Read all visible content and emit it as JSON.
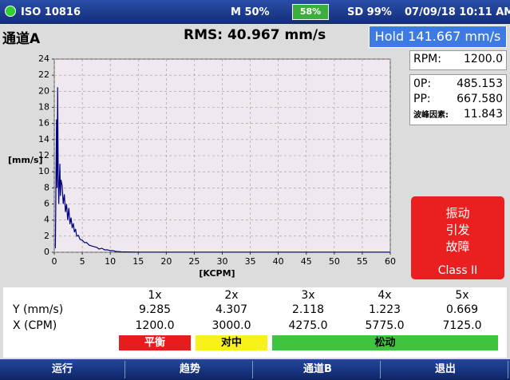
{
  "status_bar": {
    "device": "ISO 10816",
    "memory": "M 50%",
    "battery": "58%",
    "sd": "SD 99%",
    "datetime": "07/09/18 10:11 AM"
  },
  "header": {
    "channel": "通道A",
    "rms": "RMS: 40.967 mm/s",
    "hold": "Hold 141.667 mm/s"
  },
  "chart_data": {
    "type": "line",
    "x_label": "[KCPM]",
    "y_label": "[mm/s]",
    "x": [
      0.2,
      0.4,
      0.5,
      0.6,
      0.7,
      0.8,
      1.0,
      1.1,
      1.2,
      1.4,
      1.6,
      1.8,
      2.0,
      2.2,
      2.4,
      2.6,
      2.8,
      3.0,
      3.2,
      3.4,
      3.6,
      3.8,
      4.0,
      4.3,
      4.6,
      5.0,
      5.4,
      5.8,
      6.2,
      6.6,
      7.1,
      7.6,
      8.0,
      8.5,
      9.0,
      9.5,
      10,
      10.5,
      11,
      12,
      15,
      20,
      30,
      40,
      50,
      60
    ],
    "values": [
      0.5,
      16.5,
      8,
      20.5,
      10,
      6,
      11,
      7,
      9,
      8.3,
      6,
      7.2,
      5,
      6,
      4,
      5.5,
      3.5,
      4.3,
      3,
      3.6,
      2.5,
      2.9,
      2,
      2.1,
      1.6,
      1.5,
      1.2,
      1.2,
      0.9,
      0.8,
      0.7,
      0.6,
      0.4,
      0.5,
      0.3,
      0.3,
      0.2,
      0.2,
      0.1,
      0.05,
      0.02,
      0.02,
      0.02,
      0.02,
      0.02,
      0.02
    ],
    "color": "#00007f",
    "xlim": [
      0,
      60
    ],
    "xticks": [
      0,
      5,
      10,
      15,
      20,
      25,
      30,
      35,
      40,
      45,
      50,
      55,
      60
    ],
    "ylim": [
      0,
      24
    ],
    "yticks": [
      0,
      2,
      4,
      6,
      8,
      10,
      12,
      14,
      16,
      18,
      20,
      22,
      24
    ],
    "grid": true
  },
  "readings": {
    "rpm_label": "RPM:",
    "rpm": "1200.0",
    "op_label": "0P:",
    "op": "485.153",
    "pp_label": "PP:",
    "pp": "667.580",
    "crest_label": "波峰因素:",
    "crest": "11.843"
  },
  "alert": {
    "lines": [
      "振动",
      "引发",
      "故障"
    ],
    "class": "Class II"
  },
  "table": {
    "header": [
      "1x",
      "2x",
      "3x",
      "4x",
      "5x"
    ],
    "rows": [
      [
        "Y (mm/s)",
        "9.285",
        "4.307",
        "2.118",
        "1.223",
        "0.669"
      ],
      [
        "X (CPM)",
        "1200.0",
        "3000.0",
        "4275.0",
        "5775.0",
        "7125.0"
      ]
    ]
  },
  "diagnosis": [
    "平衡",
    "对中",
    "松动"
  ],
  "nav": [
    "运行",
    "趋势",
    "通道B",
    "退出"
  ]
}
